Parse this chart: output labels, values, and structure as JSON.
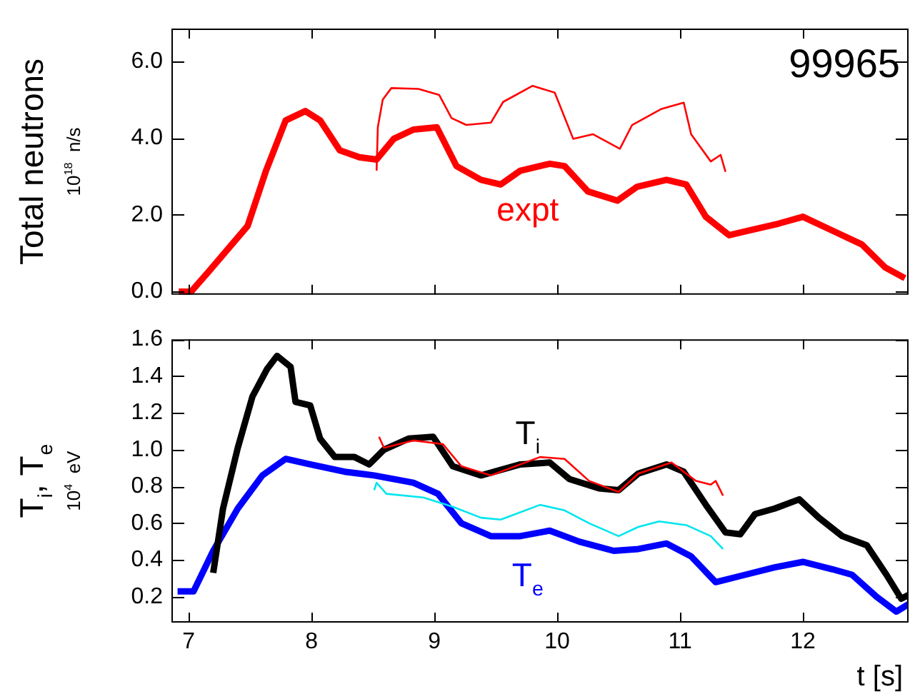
{
  "chart_data": [
    {
      "type": "line",
      "ylabel": "Total neutrons\n10$^{18}$  n/s",
      "annotations": [
        "99965"
      ],
      "xlim": [
        6.86,
        12.86
      ],
      "xticks": [
        7,
        8,
        9,
        10,
        11,
        12
      ],
      "ylim": [
        -0.08,
        6.85
      ],
      "yticks": [
        {
          "value": 0,
          "label": "0.0"
        },
        {
          "value": 2,
          "label": "2.0"
        },
        {
          "value": 4,
          "label": "4.0"
        },
        {
          "value": 6,
          "label": "6.0"
        }
      ],
      "tick_labels": "y",
      "grid": false,
      "legend": false,
      "series": [
        {
          "name": "expt",
          "color": "#ff0000",
          "x": [
            6.92,
            7.02,
            7.16,
            7.32,
            7.48,
            7.63,
            7.79,
            7.95,
            8.07,
            8.23,
            8.39,
            8.53,
            8.67,
            8.83,
            9.02,
            9.18,
            9.38,
            9.54,
            9.7,
            9.94,
            10.06,
            10.25,
            10.49,
            10.65,
            10.89,
            11.05,
            11.21,
            11.4,
            11.56,
            11.8,
            12.0,
            12.24,
            12.48,
            12.67,
            12.83
          ],
          "values": [
            0,
            0,
            0.51,
            1.11,
            1.71,
            3.15,
            4.46,
            4.7,
            4.46,
            3.68,
            3.5,
            3.44,
            3.98,
            4.22,
            4.28,
            3.27,
            2.91,
            2.79,
            3.15,
            3.33,
            3.27,
            2.61,
            2.37,
            2.73,
            2.91,
            2.79,
            1.95,
            1.47,
            1.59,
            1.77,
            1.95,
            1.59,
            1.23,
            0.63,
            0.35
          ]
        },
        {
          "color": "#ff0000",
          "x": [
            8.53,
            8.54,
            8.58,
            8.65,
            8.87,
            9.04,
            9.14,
            9.26,
            9.46,
            9.56,
            9.8,
            9.98,
            10.13,
            10.29,
            10.51,
            10.61,
            10.85,
            11.03,
            11.09,
            11.25,
            11.33,
            11.37
          ],
          "values": [
            3.15,
            4.28,
            5.0,
            5.3,
            5.28,
            5.12,
            4.52,
            4.34,
            4.4,
            4.94,
            5.36,
            5.18,
            3.98,
            4.1,
            3.72,
            4.34,
            4.76,
            4.92,
            4.1,
            3.39,
            3.56,
            3.12
          ]
        }
      ]
    },
    {
      "type": "line",
      "xlabel": "t [s]",
      "ylabel": "T$_{i}$, T$_{e}$\n10$^{4}$  eV",
      "xlim": [
        6.86,
        12.86
      ],
      "xticks": [
        7,
        8,
        9,
        10,
        11,
        12
      ],
      "ylim": [
        0.06,
        1.6
      ],
      "yticks": [
        {
          "value": 0.2,
          "label": "0.2"
        },
        {
          "value": 0.4,
          "label": "0.4"
        },
        {
          "value": 0.6,
          "label": "0.6"
        },
        {
          "value": 0.8,
          "label": "0.8"
        },
        {
          "value": 1.0,
          "label": "1.0"
        },
        {
          "value": 1.2,
          "label": "1.2"
        },
        {
          "value": 1.4,
          "label": "1.4"
        },
        {
          "value": 1.6,
          "label": "1.6"
        }
      ],
      "grid": false,
      "legend": false,
      "series": [
        {
          "name": "T$_{i}$",
          "color": "#000000",
          "x": [
            7.2,
            7.28,
            7.4,
            7.52,
            7.64,
            7.72,
            7.83,
            7.87,
            7.99,
            8.07,
            8.19,
            8.35,
            8.47,
            8.59,
            8.79,
            8.99,
            9.15,
            9.38,
            9.7,
            9.94,
            10.1,
            10.34,
            10.5,
            10.66,
            10.89,
            11.03,
            11.21,
            11.37,
            11.49,
            11.61,
            11.77,
            11.97,
            12.13,
            12.32,
            12.52,
            12.68,
            12.8,
            12.86
          ],
          "values": [
            0.33,
            0.68,
            1.01,
            1.29,
            1.44,
            1.51,
            1.45,
            1.26,
            1.24,
            1.06,
            0.96,
            0.96,
            0.92,
            1.0,
            1.06,
            1.07,
            0.91,
            0.86,
            0.92,
            0.93,
            0.84,
            0.79,
            0.78,
            0.87,
            0.92,
            0.88,
            0.7,
            0.55,
            0.54,
            0.65,
            0.68,
            0.73,
            0.63,
            0.53,
            0.48,
            0.32,
            0.19,
            0.21
          ]
        },
        {
          "name": "T$_{e}$",
          "color": "#0000ff",
          "x": [
            6.91,
            7.04,
            7.2,
            7.4,
            7.6,
            7.79,
            7.99,
            8.27,
            8.51,
            8.83,
            9.03,
            9.22,
            9.46,
            9.7,
            9.94,
            10.18,
            10.46,
            10.66,
            10.89,
            11.09,
            11.29,
            11.53,
            11.77,
            12.0,
            12.24,
            12.4,
            12.6,
            12.76,
            12.86
          ],
          "values": [
            0.23,
            0.23,
            0.45,
            0.68,
            0.86,
            0.95,
            0.92,
            0.88,
            0.86,
            0.82,
            0.76,
            0.6,
            0.53,
            0.53,
            0.56,
            0.5,
            0.45,
            0.46,
            0.49,
            0.42,
            0.28,
            0.32,
            0.36,
            0.39,
            0.35,
            0.32,
            0.2,
            0.12,
            0.16
          ]
        },
        {
          "color": "#ff0000",
          "x": [
            8.55,
            8.59,
            8.83,
            9.07,
            9.22,
            9.46,
            9.86,
            10.06,
            10.26,
            10.5,
            10.66,
            10.93,
            11.13,
            11.25,
            11.29,
            11.35
          ],
          "values": [
            1.07,
            1.01,
            1.05,
            1.03,
            0.91,
            0.86,
            0.96,
            0.95,
            0.83,
            0.77,
            0.87,
            0.93,
            0.83,
            0.81,
            0.83,
            0.75
          ]
        },
        {
          "color": "#00e5ee",
          "x": [
            8.51,
            8.53,
            8.61,
            8.91,
            9.15,
            9.38,
            9.54,
            9.86,
            10.06,
            10.26,
            10.5,
            10.66,
            10.83,
            11.05,
            11.25,
            11.35
          ],
          "values": [
            0.78,
            0.82,
            0.76,
            0.74,
            0.69,
            0.63,
            0.62,
            0.7,
            0.67,
            0.6,
            0.53,
            0.58,
            0.61,
            0.59,
            0.53,
            0.46
          ]
        }
      ]
    }
  ]
}
